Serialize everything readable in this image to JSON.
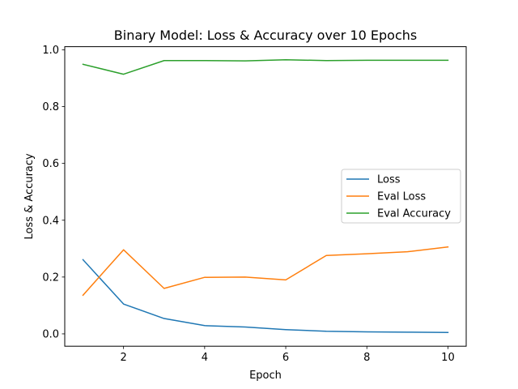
{
  "chart_data": {
    "type": "line",
    "title": "Binary Model: Loss & Accuracy over 10 Epochs",
    "xlabel": "Epoch",
    "ylabel": "Loss & Accuracy",
    "x": [
      1,
      2,
      3,
      4,
      5,
      6,
      7,
      8,
      9,
      10
    ],
    "xlim": [
      0.55,
      10.45
    ],
    "ylim": [
      -0.0435,
      1.011
    ],
    "xticks": [
      2,
      4,
      6,
      8,
      10
    ],
    "xtick_labels": [
      "2",
      "4",
      "6",
      "8",
      "10"
    ],
    "yticks": [
      0.0,
      0.2,
      0.4,
      0.6,
      0.8,
      1.0
    ],
    "ytick_labels": [
      "0.0",
      "0.2",
      "0.4",
      "0.6",
      "0.8",
      "1.0"
    ],
    "grid": false,
    "legend_position": "center-right",
    "series": [
      {
        "name": "Loss",
        "color": "#1f77b4",
        "values": [
          0.261,
          0.105,
          0.054,
          0.029,
          0.024,
          0.015,
          0.009,
          0.007,
          0.006,
          0.005
        ]
      },
      {
        "name": "Eval Loss",
        "color": "#ff7f0e",
        "values": [
          0.136,
          0.296,
          0.16,
          0.199,
          0.2,
          0.19,
          0.276,
          0.282,
          0.289,
          0.306
        ]
      },
      {
        "name": "Eval Accuracy",
        "color": "#2ca02c",
        "values": [
          0.949,
          0.914,
          0.962,
          0.962,
          0.961,
          0.965,
          0.962,
          0.963,
          0.963,
          0.963
        ]
      }
    ]
  }
}
